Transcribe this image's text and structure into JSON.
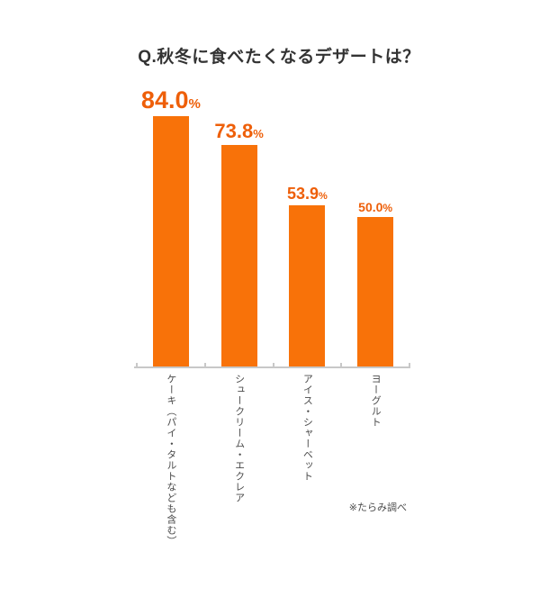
{
  "colors": {
    "bar": "#F87209",
    "value_label": "#EE5F09",
    "title": "#333333",
    "category_label": "#4A4A4A",
    "axis": "#C8C8C8"
  },
  "chart_data": {
    "type": "bar",
    "title": "Q.秋冬に食べたくなるデザートは？",
    "categories": [
      "ケーキ（パイ・タルトなども含む）",
      "シュークリーム・エクレア",
      "アイス・シャーベット",
      "ヨーグルト"
    ],
    "values": [
      84.0,
      73.8,
      53.9,
      50.0
    ],
    "value_labels": [
      "84.0",
      "73.8",
      "53.9",
      "50.0"
    ],
    "unit": "%",
    "ylim": [
      0,
      100
    ],
    "grid": false,
    "legend": "none",
    "orientation": "vertical-bars",
    "bar_label_position": "above",
    "source_note": "※たらみ調べ"
  }
}
